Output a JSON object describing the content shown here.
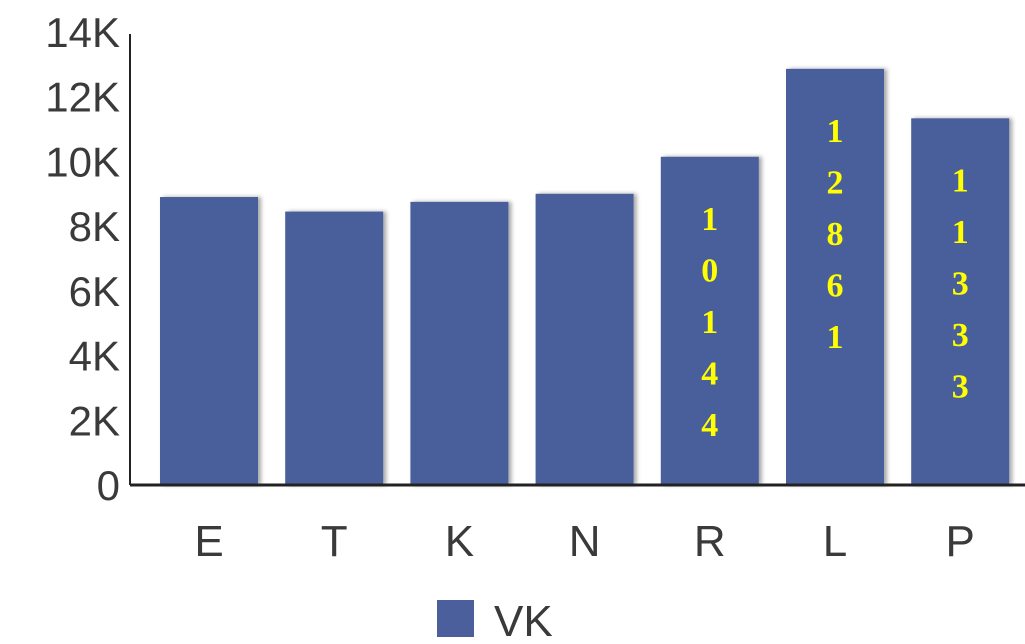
{
  "chart_data": {
    "type": "bar",
    "categories": [
      "E",
      "T",
      "K",
      "N",
      "R",
      "L",
      "P"
    ],
    "series": [
      {
        "name": "VK",
        "values": [
          8900,
          8450,
          8750,
          9000,
          10144,
          12861,
          11333
        ],
        "color": "#4a5f9c"
      }
    ],
    "data_labels": [
      null,
      null,
      null,
      null,
      "10144",
      "12861",
      "11333"
    ],
    "data_label_color": "#ffff00",
    "yticks": [
      "0",
      "2K",
      "4K",
      "6K",
      "8K",
      "10K",
      "12K",
      "14K"
    ],
    "ylim": [
      0,
      14000
    ],
    "xlabel": "",
    "ylabel": "",
    "title": "",
    "legend_position": "bottom",
    "grid": false
  }
}
